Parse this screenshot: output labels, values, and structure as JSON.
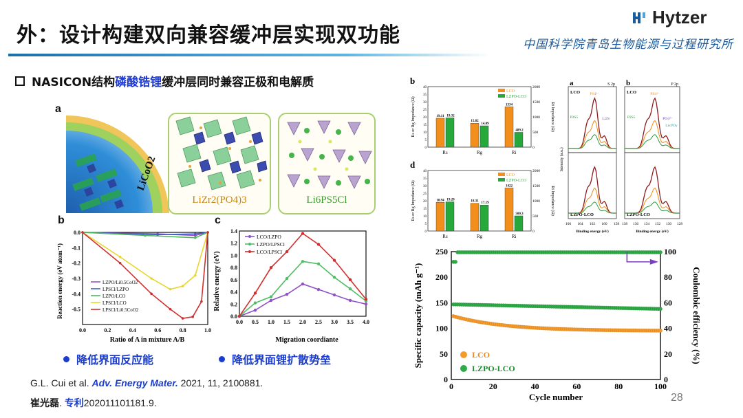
{
  "header": {
    "title": "外：设计构建双向兼容缓冲层实现双功能",
    "logo_text": "Hytzer",
    "institute": "中国科学院青岛生物能源与过程研究所"
  },
  "bullet": {
    "prefix": "NASICON结构",
    "highlight": "磷酸锆锂",
    "suffix": "缓冲层同时兼容正极和电解质"
  },
  "structure_panel": {
    "label": "a",
    "cathode_label": "LiCoO2",
    "buffer_label": "LiZr2(PO4)3",
    "electrolyte_label": "Li6PS5Cl"
  },
  "reaction_energy_chart": {
    "label": "b",
    "xlabel": "Ratio of A in mixture A/B",
    "ylabel": "Reaction energy (eV atom⁻¹)",
    "xticks": [
      "0.0",
      "0.2",
      "0.4",
      "0.6",
      "0.8",
      "1.0"
    ],
    "yticks": [
      "0.0",
      "-0.1",
      "-0.2",
      "-0.3",
      "-0.4",
      "-0.5"
    ],
    "legend": [
      "LZPO/Li0.5CoO2",
      "LPSCl/LZPO",
      "LZPO/LCO",
      "LPSCl/LCO",
      "LPSCl/Li0.5CoO2"
    ]
  },
  "migration_chart": {
    "label": "c",
    "xlabel": "Migration coordiante",
    "ylabel": "Relative energy (eV)",
    "xticks": [
      "0.0",
      "0.5",
      "1.0",
      "1.5",
      "2.0",
      "2.5",
      "3.0",
      "3.5",
      "4.0"
    ],
    "yticks": [
      "0.0",
      "0.2",
      "0.4",
      "0.6",
      "0.8",
      "1.0",
      "1.2",
      "1.4"
    ],
    "legend": [
      "LCO/LZPO",
      "LZPO/LPSCl",
      "LCO/LPSCl"
    ]
  },
  "takeaways": {
    "left": "降低界面反应能",
    "right": "降低界面锂扩散势垒"
  },
  "impedance_b": {
    "label": "b",
    "ylabel_left": "Rs or Rg Impedance (Ω)",
    "ylabel_right": "Ri Impedance (Ω)",
    "categories": [
      "Rs",
      "Rg",
      "Ri"
    ],
    "legend": [
      "LCO",
      "LZPO-LCO"
    ],
    "lco_labels": [
      "19.11",
      "15.82",
      "1334"
    ],
    "lzpo_labels": [
      "19.32",
      "14.09",
      "489.2"
    ],
    "yticks_left": [
      "0",
      "5",
      "10",
      "15",
      "20",
      "25",
      "30",
      "35",
      "40"
    ],
    "yticks_right": [
      "0",
      "500",
      "1000",
      "1500",
      "2000"
    ]
  },
  "impedance_d": {
    "label": "d",
    "ylabel_left": "Rs or Rg Impedance (Ω)",
    "ylabel_right": "Ri Impedance (Ω)",
    "categories": [
      "Rs",
      "Rg",
      "Ri"
    ],
    "legend": [
      "LCO",
      "LZPO-LCO"
    ],
    "lco_labels": [
      "18.94",
      "18.31",
      "1422"
    ],
    "lzpo_labels": [
      "19.28",
      "17.19",
      "500.3"
    ],
    "yticks_left": [
      "0",
      "5",
      "10",
      "15",
      "20",
      "25",
      "30",
      "35",
      "40"
    ],
    "yticks_right": [
      "0",
      "500",
      "1000",
      "1500",
      "2000"
    ]
  },
  "xps": {
    "left_label": "a",
    "left_corner": "S 2p",
    "right_label": "b",
    "right_corner": "P 2p",
    "top_sample": "LCO",
    "bottom_sample": "LZPO-LCO",
    "left_xlabel": "Binding energy (eV)",
    "right_xlabel": "Binding energy (eV)",
    "ylabel": "Intensity (a.u.)",
    "left_xticks": [
      "166",
      "164",
      "162",
      "160",
      "158"
    ],
    "right_xticks": [
      "138",
      "136",
      "134",
      "132",
      "130",
      "128"
    ],
    "left_annotations": [
      "PS4³⁻",
      "P2S5",
      "Li2S"
    ],
    "right_annotations": [
      "PS4³⁻",
      "P2S5",
      "PO4³⁻",
      "LixPOy"
    ]
  },
  "cycling_chart": {
    "xlabel": "Cycle number",
    "ylabel_left": "Specific capacity (mAh g⁻¹)",
    "ylabel_right": "Coulombic efficiency (%)",
    "xticks": [
      "0",
      "20",
      "40",
      "60",
      "80",
      "100"
    ],
    "yticks_left": [
      "0",
      "50",
      "100",
      "150",
      "200",
      "250"
    ],
    "yticks_right": [
      "0",
      "20",
      "40",
      "60",
      "80",
      "100"
    ],
    "legend": [
      "LCO",
      "LZPO-LCO"
    ]
  },
  "citation": {
    "authors": "G.L. Cui et al. ",
    "journal": "Adv. Energy Mater.",
    "rest": " 2021, 11, 2100881.",
    "patent_author": "崔光磊",
    "patent_word": "专利",
    "patent_number": "202011101181.9."
  },
  "page_number": "28",
  "colors": {
    "accent": "#1a3ccf",
    "lco": "#f28e1c",
    "lzpo": "#26a83b"
  }
}
